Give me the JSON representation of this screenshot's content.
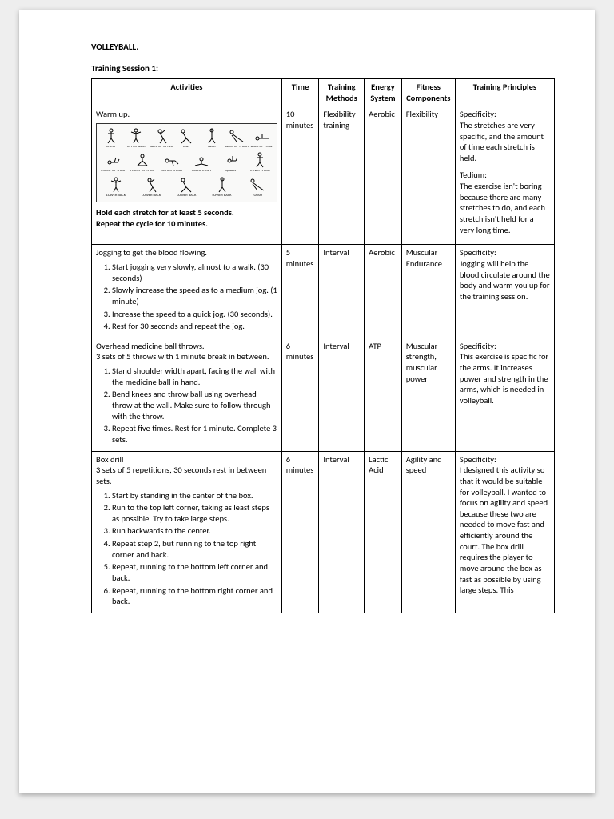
{
  "doc_title": "VOLLEYBALL.",
  "session_title": "Training Session 1:",
  "headers": [
    "Activities",
    "Time",
    "Training Methods",
    "Energy System",
    "Fitness Components",
    "Training Principles"
  ],
  "rows": [
    {
      "activity_title": "Warm up.",
      "activity_footer1": "Hold each stretch for at least 5 seconds.",
      "activity_footer2": "Repeat the cycle for 10 minutes.",
      "time": "10 minutes",
      "method": "Flexibility training",
      "energy": "Aerobic",
      "fitness": "Flexibility",
      "principles": [
        {
          "h": "Specificity:",
          "t": "The stretches are very specific, and the amount of time each stretch is held."
        },
        {
          "h": "Tedium:",
          "t": "The exercise isn't boring because there are many stretches to do, and each stretch isn't held for a very long time."
        }
      ]
    },
    {
      "activity_title": "Jogging to get the blood flowing.",
      "steps": [
        "Start jogging very slowly, almost to a walk. (30 seconds)",
        "Slowly increase the speed as to a medium jog. (1 minute)",
        "Increase the speed to a quick jog. (30 seconds).",
        "Rest for 30 seconds and repeat the jog."
      ],
      "time": "5 minutes",
      "method": "Interval",
      "energy": "Aerobic",
      "fitness": "Muscular Endurance",
      "principles": [
        {
          "h": "Specificity:",
          "t": "Jogging will help the blood circulate around the body and warm you up for the training session."
        }
      ]
    },
    {
      "activity_title": "Overhead medicine ball throws.",
      "activity_sub": "3 sets of 5 throws with 1 minute break in between.",
      "steps": [
        "Stand shoulder width apart, facing the wall with the medicine ball in hand.",
        "Bend knees and throw ball using overhead throw at the wall. Make sure to follow through with the throw.",
        "Repeat five times. Rest for 1 minute. Complete 3 sets."
      ],
      "time": "6 minutes",
      "method": "Interval",
      "energy": "ATP",
      "fitness": "Muscular strength, muscular power",
      "principles": [
        {
          "h": "Specificity:",
          "t": "This exercise is specific for the arms. It increases power and strength in the arms, which is needed in volleyball."
        }
      ]
    },
    {
      "activity_title": "Box drill",
      "activity_sub": "3 sets of 5 repetitions, 30 seconds rest in between sets.",
      "steps": [
        "Start by standing in the center of the box.",
        "Run to the top left corner, taking as least steps as possible. Try to take large steps.",
        "Run backwards to the center.",
        "Repeat step 2, but running to the top right corner and back.",
        "Repeat, running to the bottom left corner and back.",
        "Repeat, running to the bottom right corner and back."
      ],
      "time": "6 minutes",
      "method": "Interval",
      "energy": "Lactic Acid",
      "fitness": "Agility and speed",
      "principles": [
        {
          "h": "Specificity:",
          "t": "I designed this activity so that it would be suitable for volleyball. I wanted to focus on agility and speed because these two are needed to move fast and efficiently around the court. The box drill requires the player to move around the box as fast as possible by using large steps. This"
        }
      ]
    }
  ],
  "stretch_labels": [
    [
      "CHEST",
      "UPPER BACK",
      "BACK OF UPPER",
      "CALF",
      "NECK",
      "BACK OF THIGH",
      "BACK OF THIGH"
    ],
    [
      "FRONT OF THIGH",
      "FRONT OF THIGH",
      "OUTER THIGH",
      "INNER THIGH",
      "QUADS",
      "INNER THIGH"
    ],
    [
      "LOWER BACK",
      "LOWER BACK",
      "LOWER BACK",
      "LOWER BACK",
      "TORSO"
    ]
  ]
}
